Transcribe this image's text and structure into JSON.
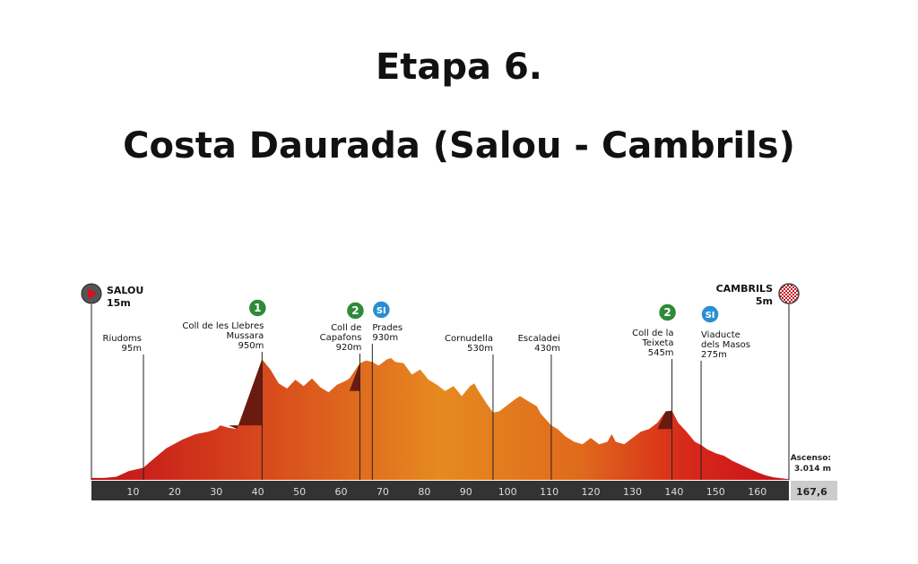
{
  "header": {
    "title": "Etapa 6.",
    "subtitle": "Costa Daurada (Salou - Cambrils)"
  },
  "chart_data": {
    "type": "area",
    "title": "Etapa 6.",
    "subtitle": "Costa Daurada (Salou - Cambrils)",
    "x_ticks": [
      10,
      20,
      30,
      40,
      50,
      60,
      70,
      80,
      90,
      100,
      110,
      120,
      130,
      140,
      150,
      160
    ],
    "x_range": [
      0,
      167.6
    ],
    "total_distance_label": "167,6",
    "ascent_label": "Ascenso:",
    "ascent_value": "3.014 m",
    "start": {
      "name": "SALOU",
      "alt": "15m",
      "km": 0
    },
    "finish": {
      "name": "CAMBRILS",
      "alt": "5m",
      "km": 167.6
    },
    "points": [
      {
        "name": "Riudoms",
        "alt": "95m",
        "km": 12.5,
        "badge": ""
      },
      {
        "name": "Coll de les Llebres Mussara",
        "line1": "Coll de les Llebres",
        "line2": "Mussara",
        "alt": "950m",
        "km": 41,
        "badge": "1"
      },
      {
        "name": "Coll de Capafons",
        "line1": "Coll de",
        "line2": "Capafons",
        "alt": "920m",
        "km": 64.5,
        "badge": "2"
      },
      {
        "name": "Prades",
        "line1": "Prades",
        "line2": "",
        "alt": "930m",
        "km": 67.5,
        "badge": "SI"
      },
      {
        "name": "Cornudella",
        "line1": "Cornudella",
        "line2": "",
        "alt": "530m",
        "km": 96.5,
        "badge": ""
      },
      {
        "name": "Escaladei",
        "line1": "Escaladei",
        "line2": "",
        "alt": "430m",
        "km": 110.5,
        "badge": ""
      },
      {
        "name": "Coll de la Teixeta",
        "line1": "Coll de la",
        "line2": "Teixeta",
        "alt": "545m",
        "km": 139.5,
        "badge": "2"
      },
      {
        "name": "Viaducte dels Masos",
        "line1": "Viaducte",
        "line2": "dels Masos",
        "alt": "275m",
        "km": 146.5,
        "badge": "SI"
      }
    ],
    "profile": [
      [
        0,
        15
      ],
      [
        3,
        15
      ],
      [
        6,
        25
      ],
      [
        9,
        70
      ],
      [
        12.5,
        95
      ],
      [
        14,
        140
      ],
      [
        18,
        250
      ],
      [
        22,
        320
      ],
      [
        25,
        360
      ],
      [
        28,
        380
      ],
      [
        30,
        400
      ],
      [
        31,
        430
      ],
      [
        33,
        410
      ],
      [
        35,
        400
      ],
      [
        41,
        950
      ],
      [
        43,
        870
      ],
      [
        45,
        760
      ],
      [
        47,
        720
      ],
      [
        49,
        790
      ],
      [
        51,
        740
      ],
      [
        53,
        800
      ],
      [
        55,
        730
      ],
      [
        57,
        690
      ],
      [
        59,
        750
      ],
      [
        61,
        780
      ],
      [
        62,
        800
      ],
      [
        64.5,
        920
      ],
      [
        66,
        940
      ],
      [
        67.5,
        930
      ],
      [
        69,
        900
      ],
      [
        71,
        950
      ],
      [
        72,
        960
      ],
      [
        73,
        930
      ],
      [
        75,
        920
      ],
      [
        77,
        830
      ],
      [
        79,
        870
      ],
      [
        81,
        790
      ],
      [
        83,
        750
      ],
      [
        85,
        700
      ],
      [
        87,
        740
      ],
      [
        89,
        660
      ],
      [
        91,
        740
      ],
      [
        92,
        760
      ],
      [
        93,
        700
      ],
      [
        95,
        600
      ],
      [
        96.5,
        530
      ],
      [
        98,
        540
      ],
      [
        100,
        590
      ],
      [
        102,
        640
      ],
      [
        103,
        660
      ],
      [
        105,
        620
      ],
      [
        107,
        580
      ],
      [
        108,
        520
      ],
      [
        110.5,
        430
      ],
      [
        112,
        400
      ],
      [
        114,
        340
      ],
      [
        116,
        300
      ],
      [
        118,
        280
      ],
      [
        120,
        330
      ],
      [
        122,
        280
      ],
      [
        124,
        300
      ],
      [
        125,
        360
      ],
      [
        126,
        300
      ],
      [
        128,
        280
      ],
      [
        130,
        330
      ],
      [
        132,
        380
      ],
      [
        134,
        400
      ],
      [
        136,
        450
      ],
      [
        138,
        540
      ],
      [
        139.5,
        545
      ],
      [
        141,
        450
      ],
      [
        143,
        380
      ],
      [
        145,
        300
      ],
      [
        146.5,
        275
      ],
      [
        148,
        240
      ],
      [
        150,
        210
      ],
      [
        152,
        190
      ],
      [
        154,
        150
      ],
      [
        156,
        120
      ],
      [
        158,
        90
      ],
      [
        160,
        60
      ],
      [
        162,
        35
      ],
      [
        164,
        20
      ],
      [
        167.6,
        5
      ]
    ],
    "climbs": [
      {
        "from": 33,
        "to": 41,
        "base_alt": 430
      },
      {
        "from": 62,
        "to": 64.5,
        "base_alt": 700
      },
      {
        "from": 136,
        "to": 139.5,
        "base_alt": 400
      }
    ],
    "colors": {
      "profile_start": "#d4141c",
      "profile_mid": "#e37a1e",
      "climb": "#6b1a0f",
      "axis_bar": "#333333",
      "axis_text": "#dddddd",
      "badge_green": "#2e8a3a",
      "badge_blue": "#2a8fd0",
      "start_icon": "#d4141c"
    }
  }
}
